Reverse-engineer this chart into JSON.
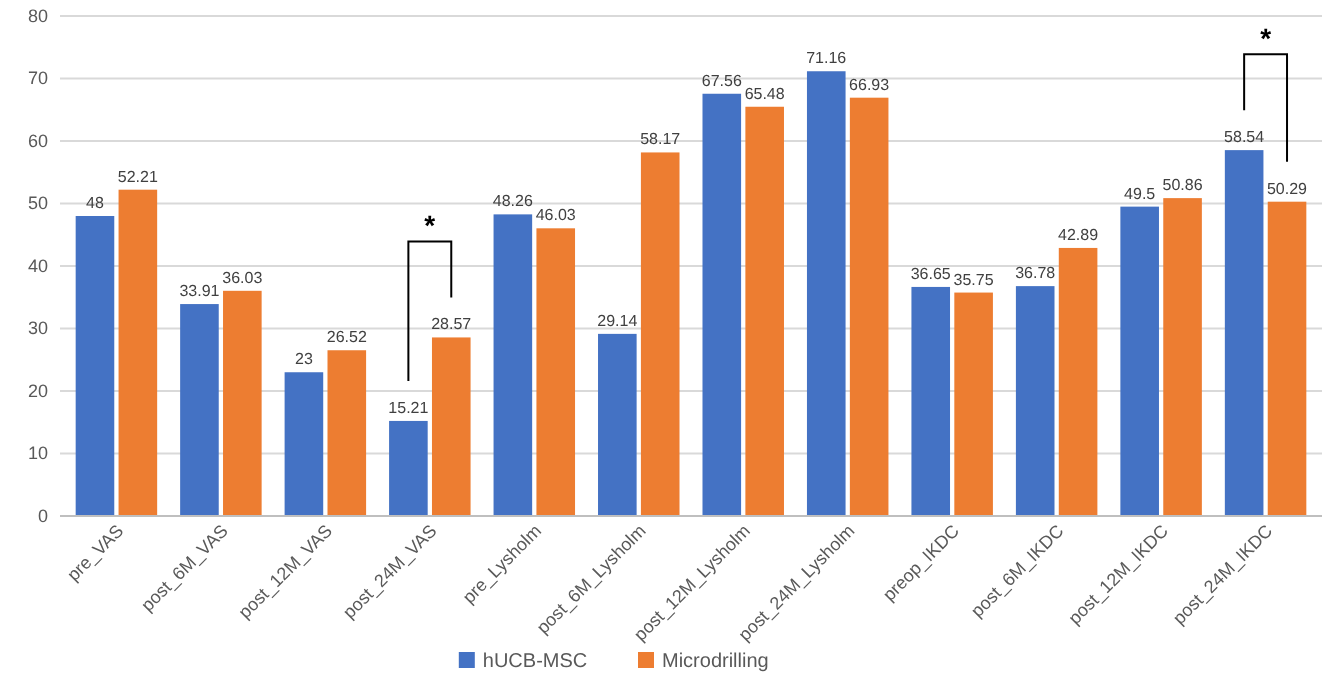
{
  "chart_data": {
    "type": "bar",
    "categories": [
      "pre_VAS",
      "post_6M_VAS",
      "post_12M_VAS",
      "post_24M_VAS",
      "pre_Lysholm",
      "post_6M_Lysholm",
      "post_12M_Lysholm",
      "post_24M_Lysholm",
      "preop_IKDC",
      "post_6M_IKDC",
      "post_12M_IKDC",
      "post_24M_IKDC"
    ],
    "series": [
      {
        "name": "hUCB-MSC",
        "color": "#4472c4",
        "values": [
          48,
          33.91,
          23,
          15.21,
          48.26,
          29.14,
          67.56,
          71.16,
          36.65,
          36.78,
          49.5,
          58.54
        ]
      },
      {
        "name": "Microdrilling",
        "color": "#ed7d31",
        "values": [
          52.21,
          36.03,
          26.52,
          28.57,
          46.03,
          58.17,
          65.48,
          66.93,
          35.75,
          42.89,
          50.86,
          50.29
        ]
      }
    ],
    "ylim": [
      0,
      80
    ],
    "yticks": [
      0,
      10,
      20,
      30,
      40,
      50,
      60,
      70,
      80
    ],
    "grid": "y",
    "legend": "bottom",
    "data_labels": true,
    "annotations": [
      "*",
      "*"
    ]
  }
}
